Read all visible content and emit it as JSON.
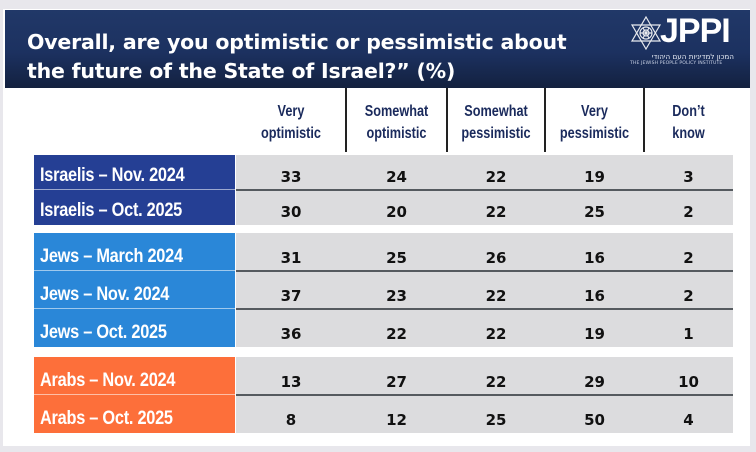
{
  "title": "Overall, are you optimistic or pessimistic about the future of the State of Israel?” (%)",
  "title_lines": [
    "Overall, are you optimistic or pessimistic about",
    "the future of the State of Israel?” (%)"
  ],
  "logo": {
    "icon": "star-of-david-icon",
    "text": "JPPI",
    "hebrew": "המכון למדיניות העם היהודי",
    "english": "THE JEWISH PEOPLE POLICY INSTITUTE"
  },
  "colors": {
    "banner": "#1c3160",
    "header_text": "#1a2a5c",
    "israelis": "#253f94",
    "jews": "#2a87d8",
    "arabs": "#fd6f3a",
    "cell_bg": "#dcdcde"
  },
  "chart_data": {
    "type": "table",
    "title": "Overall, are you optimistic or pessimistic about the future of the State of Israel?” (%)",
    "columns": [
      {
        "line1": "Very",
        "line2": "optimistic"
      },
      {
        "line1": "Somewhat",
        "line2": "optimistic"
      },
      {
        "line1": "Somewhat",
        "line2": "pessimistic"
      },
      {
        "line1": "Very",
        "line2": "pessimistic"
      },
      {
        "line1": "Don’t",
        "line2": "know"
      }
    ],
    "groups": [
      {
        "name": "Israelis",
        "color": "#253f94",
        "rows": [
          {
            "label": "Israelis – Nov. 2024",
            "values": [
              33,
              24,
              22,
              19,
              3
            ]
          },
          {
            "label": "Israelis – Oct. 2025",
            "values": [
              30,
              20,
              22,
              25,
              2
            ]
          }
        ]
      },
      {
        "name": "Jews",
        "color": "#2a87d8",
        "rows": [
          {
            "label": "Jews – March 2024",
            "values": [
              31,
              25,
              26,
              16,
              2
            ]
          },
          {
            "label": "Jews – Nov. 2024",
            "values": [
              37,
              23,
              22,
              16,
              2
            ]
          },
          {
            "label": "Jews – Oct. 2025",
            "values": [
              36,
              22,
              22,
              19,
              1
            ]
          }
        ]
      },
      {
        "name": "Arabs",
        "color": "#fd6f3a",
        "rows": [
          {
            "label": "Arabs – Nov. 2024",
            "values": [
              13,
              27,
              22,
              29,
              10
            ]
          },
          {
            "label": "Arabs – Oct. 2025",
            "values": [
              8,
              12,
              25,
              50,
              4
            ]
          }
        ]
      }
    ],
    "unit": "%"
  }
}
